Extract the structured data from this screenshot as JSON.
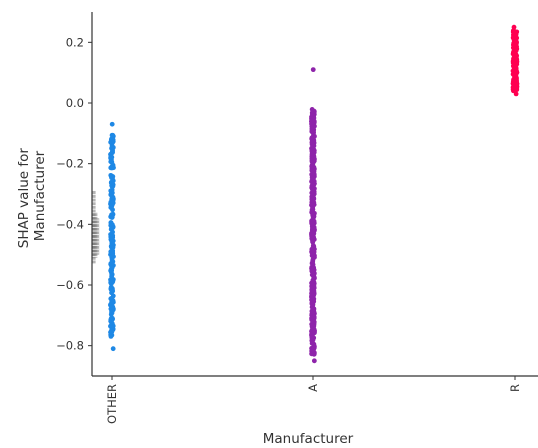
{
  "chart_data": {
    "type": "scatter",
    "xlabel": "Manufacturer",
    "ylabel_lines": [
      "SHAP value for",
      "Manufacturer"
    ],
    "categories": [
      "OTHER",
      "A",
      "R"
    ],
    "ylim": [
      -0.9,
      0.3
    ],
    "yticks": [
      0.2,
      0.0,
      -0.2,
      -0.4,
      -0.6,
      -0.8
    ],
    "ytick_labels": [
      "0.2",
      "0.0",
      "−0.2",
      "−0.4",
      "−0.6",
      "−0.8"
    ],
    "grid": false,
    "legend": "none",
    "series": [
      {
        "category": "OTHER",
        "color": "#1e88e5",
        "min": -0.81,
        "max": -0.07,
        "dense_min": -0.77,
        "dense_max": -0.1
      },
      {
        "category": "A",
        "color": "#8e24aa",
        "min": -0.85,
        "max": 0.11,
        "dense_min": -0.83,
        "dense_max": -0.02
      },
      {
        "category": "R",
        "color": "#ff0051",
        "min": 0.03,
        "max": 0.25,
        "dense_min": 0.04,
        "dense_max": 0.24
      }
    ],
    "histogram": {
      "color": "#777777",
      "bins": [
        {
          "y0": -0.53,
          "y1": -0.29,
          "count": 2
        },
        {
          "y0": -0.51,
          "y1": -0.36,
          "count": 3
        },
        {
          "y0": -0.5,
          "y1": -0.38,
          "count": 4
        }
      ]
    }
  }
}
